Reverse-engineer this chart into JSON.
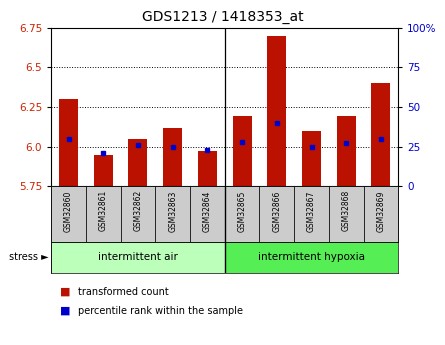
{
  "title": "GDS1213 / 1418353_at",
  "samples": [
    "GSM32860",
    "GSM32861",
    "GSM32862",
    "GSM32863",
    "GSM32864",
    "GSM32865",
    "GSM32866",
    "GSM32867",
    "GSM32868",
    "GSM32869"
  ],
  "transformed_count": [
    6.3,
    5.95,
    6.05,
    6.12,
    5.97,
    6.19,
    6.7,
    6.1,
    6.19,
    6.4
  ],
  "percentile_rank": [
    30,
    21,
    26,
    25,
    23,
    28,
    40,
    25,
    27,
    30
  ],
  "ylim_left": [
    5.75,
    6.75
  ],
  "ylim_right": [
    0,
    100
  ],
  "yticks_left": [
    5.75,
    6.0,
    6.25,
    6.5,
    6.75
  ],
  "yticks_right": [
    0,
    25,
    50,
    75,
    100
  ],
  "dotted_lines": [
    6.0,
    6.25,
    6.5
  ],
  "bar_color": "#bb1100",
  "dot_color": "#0000cc",
  "group1_label": "intermittent air",
  "group2_label": "intermittent hypoxia",
  "group1_color": "#bbffbb",
  "group2_color": "#55ee55",
  "stress_label": "stress",
  "legend_items": [
    "transformed count",
    "percentile rank within the sample"
  ],
  "legend_colors": [
    "#bb1100",
    "#0000cc"
  ],
  "bar_baseline": 5.75,
  "n_group1": 5,
  "n_group2": 5,
  "tick_label_color_left": "#cc2200",
  "tick_label_color_right": "#0000cc",
  "sample_bg_color": "#cccccc",
  "title_fontsize": 10
}
